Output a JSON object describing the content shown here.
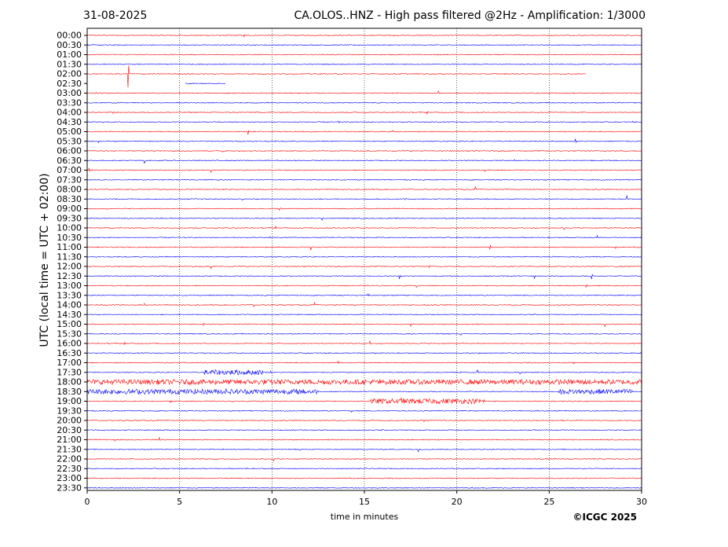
{
  "header": {
    "date": "31-08-2025",
    "title": "CA.OLOS..HNZ - High pass filtered @2Hz - Amplification: 1/3000"
  },
  "footer": {
    "copyright": "©ICGC 2025"
  },
  "chart_data": {
    "type": "line",
    "title": "CA.OLOS..HNZ - High pass filtered @2Hz - Amplification: 1/3000",
    "xlabel": "time in minutes",
    "ylabel": "UTC (local time = UTC + 02:00)",
    "xlim": [
      0,
      30
    ],
    "x_ticks": [
      0,
      5,
      10,
      15,
      20,
      25,
      30
    ],
    "x_grid": "dotted vertical lines at tick positions",
    "row_labels": [
      "00:00",
      "00:30",
      "01:00",
      "01:30",
      "02:00",
      "02:30",
      "03:00",
      "03:30",
      "04:00",
      "04:30",
      "05:00",
      "05:30",
      "06:00",
      "06:30",
      "07:00",
      "07:30",
      "08:00",
      "08:30",
      "09:00",
      "09:30",
      "10:00",
      "10:30",
      "11:00",
      "11:30",
      "12:00",
      "12:30",
      "13:00",
      "13:30",
      "14:00",
      "14:30",
      "15:00",
      "15:30",
      "16:00",
      "16:30",
      "17:00",
      "17:30",
      "18:00",
      "18:30",
      "19:00",
      "19:30",
      "20:00",
      "20:30",
      "21:00",
      "21:30",
      "22:00",
      "22:30",
      "23:00",
      "23:30"
    ],
    "row_colors": [
      "#ff0000",
      "#0000ff"
    ],
    "events": [
      {
        "row": 0,
        "x": 8.5,
        "amp": 5
      },
      {
        "row": 0,
        "x": 16.6,
        "amp": 6
      },
      {
        "row": 2,
        "x": 21.3,
        "amp": 3
      },
      {
        "row": 4,
        "x": 2.2,
        "amp": 60
      },
      {
        "row": 6,
        "x": 0.5,
        "amp": 3
      },
      {
        "row": 6,
        "x": 19.0,
        "amp": 4
      },
      {
        "row": 8,
        "x": 1.4,
        "amp": 5
      },
      {
        "row": 8,
        "x": 18.4,
        "amp": 5
      },
      {
        "row": 9,
        "x": 13.6,
        "amp": 6
      },
      {
        "row": 9,
        "x": 29.5,
        "amp": 2
      },
      {
        "row": 10,
        "x": 8.7,
        "amp": 4
      },
      {
        "row": 10,
        "x": 16.5,
        "amp": 5
      },
      {
        "row": 10,
        "x": 12.1,
        "amp": 3
      },
      {
        "row": 11,
        "x": 0.6,
        "amp": 5
      },
      {
        "row": 11,
        "x": 1.5,
        "amp": 4
      },
      {
        "row": 11,
        "x": 26.4,
        "amp": 7
      },
      {
        "row": 12,
        "x": 7.3,
        "amp": 3
      },
      {
        "row": 12,
        "x": 24.9,
        "amp": 6
      },
      {
        "row": 13,
        "x": 3.1,
        "amp": 6
      },
      {
        "row": 13,
        "x": 23.1,
        "amp": 3
      },
      {
        "row": 13,
        "x": 27.3,
        "amp": 4
      },
      {
        "row": 13,
        "x": 30.0,
        "amp": 5
      },
      {
        "row": 14,
        "x": 0.1,
        "amp": 3
      },
      {
        "row": 14,
        "x": 6.7,
        "amp": 4
      },
      {
        "row": 14,
        "x": 21.5,
        "amp": 4
      },
      {
        "row": 14,
        "x": 26.7,
        "amp": 4
      },
      {
        "row": 15,
        "x": 6.5,
        "amp": 3
      },
      {
        "row": 15,
        "x": 28.6,
        "amp": 5
      },
      {
        "row": 16,
        "x": 21.0,
        "amp": 6
      },
      {
        "row": 16,
        "x": 24.7,
        "amp": 3
      },
      {
        "row": 17,
        "x": 8.4,
        "amp": 7
      },
      {
        "row": 17,
        "x": 17.2,
        "amp": 5
      },
      {
        "row": 17,
        "x": 21.6,
        "amp": 4
      },
      {
        "row": 17,
        "x": 29.2,
        "amp": 5
      },
      {
        "row": 18,
        "x": 1.1,
        "amp": 6
      },
      {
        "row": 18,
        "x": 10.4,
        "amp": 5
      },
      {
        "row": 18,
        "x": 15.0,
        "amp": 3
      },
      {
        "row": 19,
        "x": 12.7,
        "amp": 5
      },
      {
        "row": 19,
        "x": 25.0,
        "amp": 3
      },
      {
        "row": 20,
        "x": 10.2,
        "amp": 6
      },
      {
        "row": 20,
        "x": 21.2,
        "amp": 5
      },
      {
        "row": 20,
        "x": 25.8,
        "amp": 4
      },
      {
        "row": 20,
        "x": 29.8,
        "amp": 6
      },
      {
        "row": 21,
        "x": 2.8,
        "amp": 3
      },
      {
        "row": 21,
        "x": 9.9,
        "amp": 5
      },
      {
        "row": 21,
        "x": 27.6,
        "amp": 4
      },
      {
        "row": 22,
        "x": 10.0,
        "amp": 4
      },
      {
        "row": 22,
        "x": 12.1,
        "amp": 5
      },
      {
        "row": 22,
        "x": 21.8,
        "amp": 6
      },
      {
        "row": 22,
        "x": 28.6,
        "amp": 5
      },
      {
        "row": 23,
        "x": 18.5,
        "amp": 5
      },
      {
        "row": 23,
        "x": 25.2,
        "amp": 5
      },
      {
        "row": 23,
        "x": 26.7,
        "amp": 4
      },
      {
        "row": 24,
        "x": 6.7,
        "amp": 3
      },
      {
        "row": 24,
        "x": 18.5,
        "amp": 3
      },
      {
        "row": 25,
        "x": 16.9,
        "amp": 6
      },
      {
        "row": 25,
        "x": 24.2,
        "amp": 5
      },
      {
        "row": 25,
        "x": 27.3,
        "amp": 8
      },
      {
        "row": 26,
        "x": 17.8,
        "amp": 6
      },
      {
        "row": 26,
        "x": 18.7,
        "amp": 5
      },
      {
        "row": 26,
        "x": 27.0,
        "amp": 4
      },
      {
        "row": 27,
        "x": 15.2,
        "amp": 4
      },
      {
        "row": 28,
        "x": 3.1,
        "amp": 6
      },
      {
        "row": 28,
        "x": 9.0,
        "amp": 5
      },
      {
        "row": 28,
        "x": 12.3,
        "amp": 4
      },
      {
        "row": 29,
        "x": 7.3,
        "amp": 4
      },
      {
        "row": 30,
        "x": 6.3,
        "amp": 3
      },
      {
        "row": 30,
        "x": 12.9,
        "amp": 5
      },
      {
        "row": 30,
        "x": 17.5,
        "amp": 4
      },
      {
        "row": 30,
        "x": 28.0,
        "amp": 6
      },
      {
        "row": 31,
        "x": 20.2,
        "amp": 4
      },
      {
        "row": 32,
        "x": 2.0,
        "amp": 6
      },
      {
        "row": 32,
        "x": 15.3,
        "amp": 4
      },
      {
        "row": 32,
        "x": 29.6,
        "amp": 4
      },
      {
        "row": 33,
        "x": 11.8,
        "amp": 3
      },
      {
        "row": 33,
        "x": 21.2,
        "amp": 3
      },
      {
        "row": 34,
        "x": 4.2,
        "amp": 6
      },
      {
        "row": 34,
        "x": 13.6,
        "amp": 3
      },
      {
        "row": 34,
        "x": 26.3,
        "amp": 4
      },
      {
        "row": 35,
        "x": 9.9,
        "amp": 5
      },
      {
        "row": 35,
        "x": 20.2,
        "amp": 6
      },
      {
        "row": 35,
        "x": 21.1,
        "amp": 6
      },
      {
        "row": 35,
        "x": 23.4,
        "amp": 7
      },
      {
        "row": 36,
        "x": 8.3,
        "amp": 6
      },
      {
        "row": 36,
        "x": 11.1,
        "amp": 6
      },
      {
        "row": 36,
        "x": 15.8,
        "amp": 5
      },
      {
        "row": 36,
        "x": 26.5,
        "amp": 7
      },
      {
        "row": 37,
        "x": 7.5,
        "amp": 7
      },
      {
        "row": 37,
        "x": 11.2,
        "amp": 6
      },
      {
        "row": 37,
        "x": 25.8,
        "amp": 5
      },
      {
        "row": 38,
        "x": 4.5,
        "amp": 5
      },
      {
        "row": 38,
        "x": 7.9,
        "amp": 5
      },
      {
        "row": 38,
        "x": 17.0,
        "amp": 5
      },
      {
        "row": 38,
        "x": 26.2,
        "amp": 5
      },
      {
        "row": 39,
        "x": 3.0,
        "amp": 4
      },
      {
        "row": 39,
        "x": 8.9,
        "amp": 4
      },
      {
        "row": 39,
        "x": 14.3,
        "amp": 4
      },
      {
        "row": 40,
        "x": 18.2,
        "amp": 5
      },
      {
        "row": 42,
        "x": 3.9,
        "amp": 6
      },
      {
        "row": 42,
        "x": 1.5,
        "amp": 3
      },
      {
        "row": 43,
        "x": 11.5,
        "amp": 4
      },
      {
        "row": 43,
        "x": 17.9,
        "amp": 7
      },
      {
        "row": 44,
        "x": 10.1,
        "amp": 3
      },
      {
        "row": 45,
        "x": 8.6,
        "amp": 6
      },
      {
        "row": 47,
        "x": 13.3,
        "amp": 2
      }
    ],
    "noisy_segments": [
      {
        "row": 36,
        "x_start": 0,
        "x_end": 30
      },
      {
        "row": 37,
        "x_start": 0,
        "x_end": 12.5
      },
      {
        "row": 38,
        "x_start": 15.3,
        "x_end": 21.5
      },
      {
        "row": 35,
        "x_start": 6.3,
        "x_end": 9.5
      },
      {
        "row": 37,
        "x_start": 25.5,
        "x_end": 29.5
      }
    ],
    "data_gaps": [
      {
        "row": 4,
        "x_start": 27.0,
        "x_end": 30
      },
      {
        "row": 5,
        "x_start": 0,
        "x_end": 5.3
      },
      {
        "row": 5,
        "x_start": 7.5,
        "x_end": 30
      }
    ]
  }
}
